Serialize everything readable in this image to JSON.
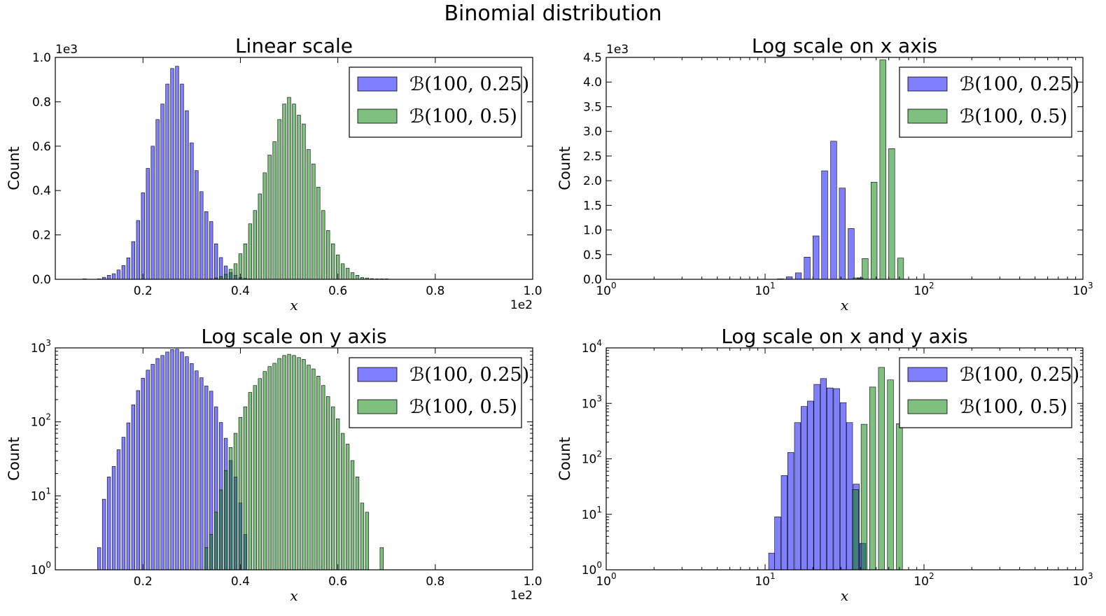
{
  "figure": {
    "title": "Binomial distribution"
  },
  "legend_entries": [
    {
      "label": "ℬ(100, 0.25)",
      "color": "#0000ff",
      "fill_opacity": 0.5
    },
    {
      "label": "ℬ(100, 0.5)",
      "color": "#008000",
      "fill_opacity": 0.5
    }
  ],
  "chart_data": [
    {
      "type": "bar",
      "title": "Linear scale",
      "xlabel": "x",
      "ylabel": "Count",
      "xscale": "linear",
      "yscale": "linear",
      "xlim": [
        0.02,
        1.0
      ],
      "ylim": [
        0,
        1.0
      ],
      "x_offset_label": "1e2",
      "y_offset_label": "1e3",
      "x_ticks": [
        0.2,
        0.4,
        0.6,
        0.8,
        1.0
      ],
      "x_tick_labels": [
        "0.2",
        "0.4",
        "0.6",
        "0.8",
        "1.0"
      ],
      "y_ticks": [
        0.0,
        0.2,
        0.4,
        0.6,
        0.8,
        1.0
      ],
      "y_tick_labels": [
        "0.0",
        "0.2",
        "0.4",
        "0.6",
        "0.8",
        "1.0"
      ],
      "legend_position": "upper-right",
      "series": [
        {
          "name": "ℬ(100, 0.25)",
          "x": [
            0.08,
            0.11,
            0.12,
            0.13,
            0.14,
            0.15,
            0.16,
            0.17,
            0.18,
            0.19,
            0.2,
            0.21,
            0.22,
            0.23,
            0.24,
            0.25,
            0.26,
            0.27,
            0.28,
            0.29,
            0.3,
            0.31,
            0.32,
            0.33,
            0.34,
            0.35,
            0.36,
            0.37,
            0.38,
            0.39,
            0.4,
            0.41,
            0.42
          ],
          "y": [
            0.002,
            0.002,
            0.009,
            0.018,
            0.025,
            0.042,
            0.062,
            0.097,
            0.17,
            0.265,
            0.39,
            0.5,
            0.6,
            0.72,
            0.79,
            0.88,
            0.95,
            0.96,
            0.88,
            0.76,
            0.615,
            0.49,
            0.395,
            0.305,
            0.26,
            0.16,
            0.098,
            0.06,
            0.03,
            0.018,
            0.008,
            0.004,
            0.002
          ]
        },
        {
          "name": "ℬ(100, 0.5)",
          "x": [
            0.34,
            0.35,
            0.36,
            0.37,
            0.38,
            0.39,
            0.4,
            0.41,
            0.42,
            0.43,
            0.44,
            0.45,
            0.46,
            0.47,
            0.48,
            0.49,
            0.5,
            0.51,
            0.52,
            0.53,
            0.54,
            0.55,
            0.56,
            0.57,
            0.58,
            0.59,
            0.6,
            0.61,
            0.62,
            0.63,
            0.64,
            0.65,
            0.66,
            0.67,
            0.68,
            0.69,
            0.7
          ],
          "y": [
            0.002,
            0.006,
            0.012,
            0.022,
            0.045,
            0.07,
            0.115,
            0.16,
            0.25,
            0.31,
            0.385,
            0.48,
            0.56,
            0.62,
            0.72,
            0.79,
            0.82,
            0.79,
            0.74,
            0.7,
            0.585,
            0.52,
            0.415,
            0.31,
            0.22,
            0.16,
            0.11,
            0.07,
            0.05,
            0.03,
            0.018,
            0.008,
            0.006,
            0.003,
            0.002,
            0.002,
            0.002
          ]
        }
      ]
    },
    {
      "type": "bar",
      "title": "Log scale on x axis",
      "xlabel": "x",
      "ylabel": "Count",
      "xscale": "log",
      "yscale": "linear",
      "xlim": [
        1,
        1000
      ],
      "ylim": [
        0,
        4.5
      ],
      "y_offset_label": "1e3",
      "x_ticks": [
        1,
        10,
        100,
        1000
      ],
      "x_tick_labels": [
        {
          "base": "10",
          "exp": "0"
        },
        {
          "base": "10",
          "exp": "1"
        },
        {
          "base": "10",
          "exp": "2"
        },
        {
          "base": "10",
          "exp": "3"
        }
      ],
      "y_ticks": [
        0.0,
        0.5,
        1.0,
        1.5,
        2.0,
        2.5,
        3.0,
        3.5,
        4.0,
        4.5
      ],
      "y_tick_labels": [
        "0.0",
        "0.5",
        "1.0",
        "1.5",
        "2.0",
        "2.5",
        "3.0",
        "3.5",
        "4.0",
        "4.5"
      ],
      "legend_position": "upper-right",
      "series": [
        {
          "name": "ℬ(100, 0.25)",
          "x": [
            11.0,
            12.5,
            14.2,
            16.2,
            18.4,
            20.9,
            23.7,
            27.0,
            30.6,
            34.8,
            39.6
          ],
          "y": [
            0.002,
            0.009,
            0.05,
            0.13,
            0.45,
            0.88,
            2.2,
            2.8,
            1.85,
            1.03,
            0.03
          ]
        },
        {
          "name": "ℬ(100, 0.5)",
          "x": [
            37.5,
            42.6,
            48.5,
            55.1,
            62.6,
            71.2
          ],
          "y": [
            0.028,
            0.42,
            1.97,
            4.45,
            2.65,
            0.43
          ]
        }
      ]
    },
    {
      "type": "bar",
      "title": "Log scale on y axis",
      "xlabel": "x",
      "ylabel": "Count",
      "xscale": "linear",
      "yscale": "log",
      "xlim": [
        0.02,
        1.0
      ],
      "ylim": [
        1,
        1000
      ],
      "x_offset_label": "1e2",
      "x_ticks": [
        0.2,
        0.4,
        0.6,
        0.8,
        1.0
      ],
      "x_tick_labels": [
        "0.2",
        "0.4",
        "0.6",
        "0.8",
        "1.0"
      ],
      "y_ticks": [
        1,
        10,
        100,
        1000
      ],
      "y_tick_labels": [
        {
          "base": "10",
          "exp": "0"
        },
        {
          "base": "10",
          "exp": "1"
        },
        {
          "base": "10",
          "exp": "2"
        },
        {
          "base": "10",
          "exp": "3"
        }
      ],
      "legend_position": "upper-right",
      "series": [
        {
          "name": "ℬ(100, 0.25)",
          "x": [
            0.11,
            0.12,
            0.13,
            0.14,
            0.15,
            0.16,
            0.17,
            0.18,
            0.19,
            0.2,
            0.21,
            0.22,
            0.23,
            0.24,
            0.25,
            0.26,
            0.27,
            0.28,
            0.29,
            0.3,
            0.31,
            0.32,
            0.33,
            0.34,
            0.35,
            0.36,
            0.37,
            0.38,
            0.39,
            0.4,
            0.41
          ],
          "y": [
            2,
            9,
            18,
            25,
            42,
            62,
            97,
            170,
            265,
            390,
            500,
            600,
            720,
            790,
            880,
            950,
            960,
            880,
            760,
            615,
            490,
            395,
            305,
            260,
            160,
            98,
            60,
            30,
            18,
            8,
            3
          ]
        },
        {
          "name": "ℬ(100, 0.5)",
          "x": [
            0.33,
            0.34,
            0.35,
            0.36,
            0.37,
            0.38,
            0.39,
            0.4,
            0.41,
            0.42,
            0.43,
            0.44,
            0.45,
            0.46,
            0.47,
            0.48,
            0.49,
            0.5,
            0.51,
            0.52,
            0.53,
            0.54,
            0.55,
            0.56,
            0.57,
            0.58,
            0.59,
            0.6,
            0.61,
            0.62,
            0.63,
            0.64,
            0.65,
            0.66,
            0.69
          ],
          "y": [
            2,
            3,
            6,
            12,
            22,
            45,
            70,
            115,
            160,
            250,
            310,
            385,
            480,
            560,
            620,
            720,
            790,
            820,
            790,
            740,
            700,
            585,
            520,
            415,
            310,
            220,
            160,
            110,
            70,
            50,
            30,
            18,
            8,
            6,
            2
          ]
        }
      ]
    },
    {
      "type": "bar",
      "title": "Log scale on x and y axis",
      "xlabel": "x",
      "ylabel": "Count",
      "xscale": "log",
      "yscale": "log",
      "xlim": [
        1,
        1000
      ],
      "ylim": [
        1,
        10000
      ],
      "x_ticks": [
        1,
        10,
        100,
        1000
      ],
      "x_tick_labels": [
        {
          "base": "10",
          "exp": "0"
        },
        {
          "base": "10",
          "exp": "1"
        },
        {
          "base": "10",
          "exp": "2"
        },
        {
          "base": "10",
          "exp": "3"
        }
      ],
      "y_ticks": [
        1,
        10,
        100,
        1000,
        10000
      ],
      "y_tick_labels": [
        {
          "base": "10",
          "exp": "0"
        },
        {
          "base": "10",
          "exp": "1"
        },
        {
          "base": "10",
          "exp": "2"
        },
        {
          "base": "10",
          "exp": "3"
        },
        {
          "base": "10",
          "exp": "4"
        }
      ],
      "legend_position": "upper-right",
      "series": [
        {
          "name": "ℬ(100, 0.25)",
          "x": [
            11.0,
            12.0,
            13.2,
            14.5,
            16.0,
            17.6,
            19.3,
            21.2,
            23.3,
            25.6,
            28.2,
            31.0,
            34.0,
            37.5,
            41.2
          ],
          "y": [
            2,
            9,
            50,
            130,
            450,
            880,
            1100,
            2200,
            2800,
            1900,
            1850,
            1030,
            450,
            35,
            3
          ]
        },
        {
          "name": "ℬ(100, 0.5)",
          "x": [
            37.0,
            42.0,
            47.5,
            54.0,
            61.5,
            70.0
          ],
          "y": [
            28,
            420,
            1970,
            4450,
            2650,
            430
          ]
        }
      ]
    }
  ]
}
